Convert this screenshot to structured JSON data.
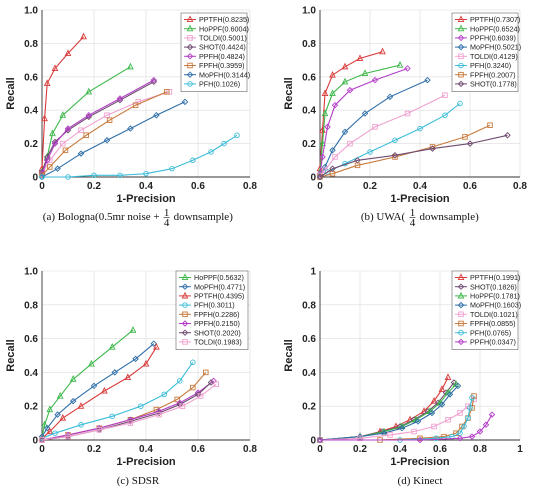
{
  "chart_data": [
    {
      "type": "line",
      "caption": {
        "label": "(a)",
        "text": "Bologna(0.5mr noise +",
        "frac_num": "1",
        "frac_den": "4",
        "suffix": "downsample)"
      },
      "xlabel": "1-Precision",
      "ylabel": "Recall",
      "xlim": [
        0,
        0.8
      ],
      "ylim": [
        0,
        1.0
      ],
      "xticks": [
        "0",
        "0.2",
        "0.4",
        "0.6",
        "0.8"
      ],
      "yticks": [
        "0",
        "0.2",
        "0.4",
        "0.6",
        "0.8",
        "1.0"
      ],
      "legend_position": "top-right",
      "series": [
        {
          "name": "PPTFH(0.8235)",
          "color": "#d93a3a",
          "marker": "triangle",
          "x": [
            0.0,
            0.01,
            0.02,
            0.05,
            0.1,
            0.16
          ],
          "y": [
            0.05,
            0.35,
            0.56,
            0.65,
            0.74,
            0.84
          ]
        },
        {
          "name": "HoPPF(0.6004)",
          "color": "#3cb84a",
          "marker": "triangle",
          "x": [
            0.0,
            0.02,
            0.04,
            0.08,
            0.18,
            0.34
          ],
          "y": [
            0.03,
            0.12,
            0.26,
            0.37,
            0.51,
            0.66
          ]
        },
        {
          "name": "TOLDI(0.5001)",
          "color": "#f0a0d0",
          "marker": "square",
          "x": [
            0.0,
            0.03,
            0.08,
            0.15,
            0.25,
            0.37,
            0.49
          ],
          "y": [
            0.02,
            0.1,
            0.2,
            0.28,
            0.37,
            0.45,
            0.51
          ]
        },
        {
          "name": "SHOT(0.4424)",
          "color": "#6e4a6e",
          "marker": "diamond",
          "x": [
            0.0,
            0.02,
            0.05,
            0.1,
            0.18,
            0.3,
            0.43
          ],
          "y": [
            0.03,
            0.12,
            0.21,
            0.28,
            0.36,
            0.46,
            0.57
          ]
        },
        {
          "name": "PPFH(0.4824)",
          "color": "#b43cc8",
          "marker": "diamond",
          "x": [
            0.0,
            0.02,
            0.05,
            0.1,
            0.18,
            0.3,
            0.43
          ],
          "y": [
            0.02,
            0.1,
            0.2,
            0.29,
            0.37,
            0.47,
            0.58
          ]
        },
        {
          "name": "FPFH(0.3959)",
          "color": "#c87a3c",
          "marker": "square",
          "x": [
            0.0,
            0.03,
            0.09,
            0.17,
            0.26,
            0.36,
            0.48
          ],
          "y": [
            0.01,
            0.06,
            0.16,
            0.25,
            0.34,
            0.43,
            0.51
          ]
        },
        {
          "name": "MoPFH(0.3144)",
          "color": "#2e6ea8",
          "marker": "diamond",
          "x": [
            0.0,
            0.06,
            0.15,
            0.25,
            0.34,
            0.44,
            0.55
          ],
          "y": [
            0.0,
            0.05,
            0.14,
            0.22,
            0.29,
            0.37,
            0.45
          ]
        },
        {
          "name": "PFH(0.1026)",
          "color": "#3cbcd8",
          "marker": "circle",
          "x": [
            0.0,
            0.1,
            0.2,
            0.3,
            0.4,
            0.5,
            0.58,
            0.65,
            0.7,
            0.75
          ],
          "y": [
            0.0,
            0.0,
            0.01,
            0.01,
            0.02,
            0.05,
            0.1,
            0.15,
            0.2,
            0.25
          ]
        }
      ]
    },
    {
      "type": "line",
      "caption": {
        "label": "(b)",
        "text": "UWA(",
        "frac_num": "1",
        "frac_den": "4",
        "suffix": "downsample)"
      },
      "xlabel": "1-Precision",
      "ylabel": "Recall",
      "xlim": [
        0,
        0.8
      ],
      "ylim": [
        0,
        1.0
      ],
      "xticks": [
        "0",
        "0.2",
        "0.4",
        "0.6",
        "0.8"
      ],
      "yticks": [
        "0",
        "0.2",
        "0.4",
        "0.6",
        "0.8",
        "1.0"
      ],
      "legend_position": "top-right",
      "series": [
        {
          "name": "PPTFH(0.7307)",
          "color": "#d93a3a",
          "marker": "triangle",
          "x": [
            0.0,
            0.01,
            0.02,
            0.05,
            0.1,
            0.16,
            0.25
          ],
          "y": [
            0.05,
            0.28,
            0.5,
            0.61,
            0.66,
            0.71,
            0.75
          ]
        },
        {
          "name": "HoPPF(0.6524)",
          "color": "#3cb84a",
          "marker": "triangle",
          "x": [
            0.0,
            0.01,
            0.02,
            0.05,
            0.1,
            0.18,
            0.32
          ],
          "y": [
            0.03,
            0.2,
            0.38,
            0.5,
            0.57,
            0.62,
            0.67
          ]
        },
        {
          "name": "PPFH(0.6039)",
          "color": "#b43cc8",
          "marker": "diamond",
          "x": [
            0.0,
            0.01,
            0.03,
            0.06,
            0.12,
            0.22,
            0.35
          ],
          "y": [
            0.02,
            0.12,
            0.3,
            0.43,
            0.52,
            0.58,
            0.65
          ]
        },
        {
          "name": "MoPFH(0.5021)",
          "color": "#2e6ea8",
          "marker": "diamond",
          "x": [
            0.0,
            0.02,
            0.05,
            0.1,
            0.18,
            0.28,
            0.43
          ],
          "y": [
            0.01,
            0.06,
            0.16,
            0.27,
            0.38,
            0.48,
            0.58
          ]
        },
        {
          "name": "TOLDI(0.4129)",
          "color": "#f0a0d0",
          "marker": "square",
          "x": [
            0.0,
            0.02,
            0.06,
            0.12,
            0.22,
            0.35,
            0.5
          ],
          "y": [
            0.01,
            0.04,
            0.12,
            0.2,
            0.3,
            0.38,
            0.49
          ]
        },
        {
          "name": "PFH(0.3240)",
          "color": "#3cbcd8",
          "marker": "circle",
          "x": [
            0.0,
            0.03,
            0.1,
            0.2,
            0.3,
            0.4,
            0.5,
            0.56
          ],
          "y": [
            0.0,
            0.03,
            0.08,
            0.15,
            0.22,
            0.29,
            0.37,
            0.44
          ]
        },
        {
          "name": "FPFH(0.2007)",
          "color": "#c87a3c",
          "marker": "square",
          "x": [
            0.0,
            0.05,
            0.15,
            0.3,
            0.45,
            0.58,
            0.68
          ],
          "y": [
            0.0,
            0.02,
            0.07,
            0.12,
            0.18,
            0.24,
            0.31
          ]
        },
        {
          "name": "SHOT(0.1778)",
          "color": "#6e4a6e",
          "marker": "diamond",
          "x": [
            0.0,
            0.05,
            0.15,
            0.3,
            0.45,
            0.6,
            0.75
          ],
          "y": [
            0.0,
            0.05,
            0.1,
            0.13,
            0.17,
            0.2,
            0.25
          ]
        }
      ]
    },
    {
      "type": "line",
      "caption": {
        "label": "(c)",
        "text": "SDSR",
        "frac_num": "",
        "frac_den": "",
        "suffix": ""
      },
      "xlabel": "1-Precision",
      "ylabel": "Recall",
      "xlim": [
        0,
        0.8
      ],
      "ylim": [
        0,
        1.0
      ],
      "xticks": [
        "0",
        "0.2",
        "0.4",
        "0.6",
        "0.8"
      ],
      "yticks": [
        "0",
        "0.2",
        "0.4",
        "0.6",
        "0.8",
        "1.0"
      ],
      "legend_position": "top-right",
      "series": [
        {
          "name": "HoPPF(0.5632)",
          "color": "#3cb84a",
          "marker": "triangle",
          "x": [
            0.0,
            0.01,
            0.03,
            0.07,
            0.12,
            0.19,
            0.27,
            0.35
          ],
          "y": [
            0.02,
            0.09,
            0.18,
            0.26,
            0.36,
            0.45,
            0.55,
            0.65
          ]
        },
        {
          "name": "MoPFH(0.4771)",
          "color": "#2e6ea8",
          "marker": "diamond",
          "x": [
            0.0,
            0.02,
            0.06,
            0.12,
            0.2,
            0.28,
            0.36,
            0.43
          ],
          "y": [
            0.02,
            0.07,
            0.15,
            0.23,
            0.32,
            0.4,
            0.48,
            0.57
          ]
        },
        {
          "name": "PPTFH(0.4395)",
          "color": "#d93a3a",
          "marker": "triangle",
          "x": [
            0.0,
            0.03,
            0.08,
            0.15,
            0.24,
            0.33,
            0.4,
            0.44
          ],
          "y": [
            0.01,
            0.05,
            0.13,
            0.2,
            0.29,
            0.37,
            0.45,
            0.55
          ]
        },
        {
          "name": "PFH(0.3011)",
          "color": "#3cbcd8",
          "marker": "circle",
          "x": [
            0.0,
            0.05,
            0.15,
            0.27,
            0.38,
            0.47,
            0.53,
            0.58
          ],
          "y": [
            0.01,
            0.04,
            0.09,
            0.14,
            0.2,
            0.27,
            0.35,
            0.46
          ]
        },
        {
          "name": "FPFH(0.2286)",
          "color": "#c87a3c",
          "marker": "square",
          "x": [
            0.0,
            0.1,
            0.22,
            0.34,
            0.44,
            0.52,
            0.58,
            0.63
          ],
          "y": [
            0.0,
            0.03,
            0.07,
            0.12,
            0.18,
            0.24,
            0.31,
            0.4
          ]
        },
        {
          "name": "PPFH(0.2150)",
          "color": "#b43cc8",
          "marker": "diamond",
          "x": [
            0.0,
            0.1,
            0.22,
            0.34,
            0.45,
            0.53,
            0.6,
            0.66
          ],
          "y": [
            0.0,
            0.03,
            0.07,
            0.12,
            0.17,
            0.22,
            0.28,
            0.35
          ]
        },
        {
          "name": "SHOT(0.2020)",
          "color": "#6e4a6e",
          "marker": "diamond",
          "x": [
            0.0,
            0.1,
            0.22,
            0.34,
            0.45,
            0.53,
            0.6,
            0.65
          ],
          "y": [
            0.0,
            0.02,
            0.06,
            0.11,
            0.16,
            0.21,
            0.27,
            0.34
          ]
        },
        {
          "name": "TOLDI(0.1983)",
          "color": "#f0a0d0",
          "marker": "square",
          "x": [
            0.0,
            0.1,
            0.22,
            0.34,
            0.45,
            0.54,
            0.61,
            0.67
          ],
          "y": [
            0.0,
            0.02,
            0.06,
            0.1,
            0.15,
            0.2,
            0.26,
            0.33
          ]
        }
      ]
    },
    {
      "type": "line",
      "caption": {
        "label": "(d)",
        "text": "Kinect",
        "frac_num": "",
        "frac_den": "",
        "suffix": ""
      },
      "xlabel": "1-Precision",
      "ylabel": "Recall",
      "xlim": [
        0,
        1.0
      ],
      "ylim": [
        0,
        1.0
      ],
      "xticks": [
        "0",
        "0.2",
        "0.4",
        "0.6",
        "0.8",
        "1"
      ],
      "yticks": [
        "0",
        "0.2",
        "0.4",
        "0.6",
        "0.8",
        "1"
      ],
      "legend_position": "top-right",
      "series": [
        {
          "name": "PPTFH(0.1991)",
          "color": "#d93a3a",
          "marker": "triangle",
          "x": [
            0.0,
            0.2,
            0.3,
            0.38,
            0.45,
            0.52,
            0.57,
            0.61,
            0.64
          ],
          "y": [
            0.0,
            0.02,
            0.05,
            0.08,
            0.12,
            0.17,
            0.23,
            0.3,
            0.37
          ]
        },
        {
          "name": "SHOT(0.1826)",
          "color": "#6e4a6e",
          "marker": "diamond",
          "x": [
            0.0,
            0.2,
            0.31,
            0.4,
            0.47,
            0.54,
            0.59,
            0.63,
            0.67
          ],
          "y": [
            0.0,
            0.02,
            0.05,
            0.08,
            0.12,
            0.17,
            0.22,
            0.28,
            0.34
          ]
        },
        {
          "name": "HoPPF(0.1781)",
          "color": "#3cb84a",
          "marker": "triangle",
          "x": [
            0.0,
            0.2,
            0.32,
            0.41,
            0.48,
            0.55,
            0.6,
            0.64,
            0.68
          ],
          "y": [
            0.0,
            0.02,
            0.05,
            0.08,
            0.12,
            0.17,
            0.22,
            0.28,
            0.33
          ]
        },
        {
          "name": "MoPFH(0.1603)",
          "color": "#2e6ea8",
          "marker": "diamond",
          "x": [
            0.0,
            0.2,
            0.32,
            0.41,
            0.49,
            0.56,
            0.61,
            0.65,
            0.69
          ],
          "y": [
            0.0,
            0.02,
            0.04,
            0.07,
            0.11,
            0.16,
            0.21,
            0.27,
            0.32
          ]
        },
        {
          "name": "TOLDI(0.1021)",
          "color": "#f0a0d0",
          "marker": "square",
          "x": [
            0.0,
            0.2,
            0.35,
            0.47,
            0.57,
            0.64,
            0.7,
            0.74,
            0.77
          ],
          "y": [
            0.0,
            0.01,
            0.03,
            0.05,
            0.08,
            0.12,
            0.16,
            0.2,
            0.24
          ]
        },
        {
          "name": "FPFH(0.0855)",
          "color": "#c87a3c",
          "marker": "square",
          "x": [
            0.0,
            0.3,
            0.5,
            0.62,
            0.68,
            0.71,
            0.74,
            0.76,
            0.77
          ],
          "y": [
            0.0,
            0.0,
            0.01,
            0.02,
            0.04,
            0.08,
            0.13,
            0.19,
            0.26
          ]
        },
        {
          "name": "PFH(0.0765)",
          "color": "#3cbcd8",
          "marker": "circle",
          "x": [
            0.0,
            0.4,
            0.58,
            0.66,
            0.7,
            0.72,
            0.74,
            0.75,
            0.76
          ],
          "y": [
            0.0,
            0.0,
            0.01,
            0.02,
            0.04,
            0.08,
            0.13,
            0.19,
            0.25
          ]
        },
        {
          "name": "PPFH(0.0347)",
          "color": "#b43cc8",
          "marker": "diamond",
          "x": [
            0.0,
            0.5,
            0.7,
            0.76,
            0.8,
            0.83,
            0.86
          ],
          "y": [
            0.0,
            0.0,
            0.01,
            0.02,
            0.05,
            0.09,
            0.15
          ]
        }
      ]
    }
  ]
}
